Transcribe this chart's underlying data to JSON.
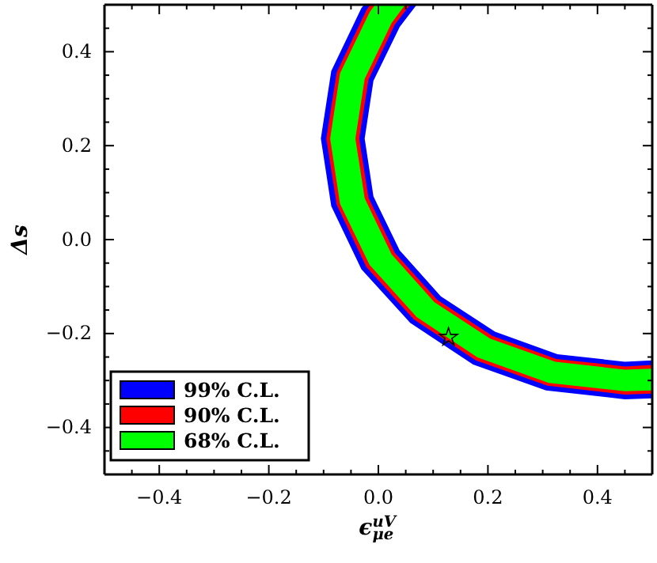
{
  "chart_data": {
    "type": "area",
    "xlabel": "ϵ$^{uV}$$_{μe}$",
    "ylabel": "Δs",
    "xlim": [
      -0.5,
      0.5
    ],
    "ylim": [
      -0.5,
      0.5
    ],
    "xticks": [
      {
        "value": -0.5,
        "label": null
      },
      {
        "value": -0.45,
        "label": null
      },
      {
        "value": -0.4,
        "label": "−0.4"
      },
      {
        "value": -0.35,
        "label": null
      },
      {
        "value": -0.3,
        "label": null
      },
      {
        "value": -0.25,
        "label": null
      },
      {
        "value": -0.2,
        "label": "−0.2"
      },
      {
        "value": -0.15,
        "label": null
      },
      {
        "value": -0.1,
        "label": null
      },
      {
        "value": -0.05,
        "label": null
      },
      {
        "value": 0,
        "label": "0.0"
      },
      {
        "value": 0.05,
        "label": null
      },
      {
        "value": 0.1,
        "label": null
      },
      {
        "value": 0.15,
        "label": null
      },
      {
        "value": 0.2,
        "label": "0.2"
      },
      {
        "value": 0.25,
        "label": null
      },
      {
        "value": 0.3,
        "label": null
      },
      {
        "value": 0.35,
        "label": null
      },
      {
        "value": 0.4,
        "label": "0.4"
      },
      {
        "value": 0.45,
        "label": null
      },
      {
        "value": 0.5,
        "label": null
      }
    ],
    "yticks": [
      {
        "value": -0.5,
        "label": null
      },
      {
        "value": -0.45,
        "label": null
      },
      {
        "value": -0.4,
        "label": "−0.4"
      },
      {
        "value": -0.35,
        "label": null
      },
      {
        "value": -0.3,
        "label": null
      },
      {
        "value": -0.25,
        "label": null
      },
      {
        "value": -0.2,
        "label": "−0.2"
      },
      {
        "value": -0.15,
        "label": null
      },
      {
        "value": -0.1,
        "label": null
      },
      {
        "value": -0.05,
        "label": null
      },
      {
        "value": 0,
        "label": "0.0"
      },
      {
        "value": 0.05,
        "label": null
      },
      {
        "value": 0.1,
        "label": null
      },
      {
        "value": 0.15,
        "label": null
      },
      {
        "value": 0.2,
        "label": "0.2"
      },
      {
        "value": 0.25,
        "label": null
      },
      {
        "value": 0.3,
        "label": null
      },
      {
        "value": 0.35,
        "label": null
      },
      {
        "value": 0.4,
        "label": "0.4"
      },
      {
        "value": 0.45,
        "label": null
      },
      {
        "value": 0.5,
        "label": null
      }
    ],
    "grid": false,
    "legend": "bottom left",
    "series": [
      {
        "name": "99% C.L.",
        "color": "#0000ff",
        "x": [
          -0.026,
          -0.031,
          -0.086,
          -0.105,
          -0.086,
          -0.031,
          0.058,
          0.173,
          0.306,
          0.45,
          0.5,
          0.5,
          0.45,
          0.327,
          0.213,
          0.114,
          0.039,
          -0.009,
          -0.025,
          -0.009,
          0.039,
          0.07
        ],
        "values": [
          0.5,
          0.493,
          0.359,
          0.215,
          0.071,
          -0.063,
          -0.177,
          -0.266,
          -0.321,
          -0.34,
          -0.338,
          -0.257,
          -0.26,
          -0.244,
          -0.196,
          -0.121,
          -0.023,
          0.092,
          0.215,
          0.338,
          0.453,
          0.5
        ]
      },
      {
        "name": "90% C.L.",
        "color": "#ff0000",
        "x": [
          -0.015,
          -0.022,
          -0.076,
          -0.095,
          -0.076,
          -0.022,
          0.065,
          0.178,
          0.309,
          0.45,
          0.5,
          0.5,
          0.45,
          0.325,
          0.208,
          0.107,
          0.03,
          -0.018,
          -0.035,
          -0.018,
          0.03,
          0.058
        ],
        "values": [
          0.5,
          0.488,
          0.356,
          0.215,
          0.074,
          -0.058,
          -0.17,
          -0.257,
          -0.311,
          -0.33,
          -0.328,
          -0.267,
          -0.27,
          -0.254,
          -0.205,
          -0.128,
          -0.028,
          0.089,
          0.215,
          0.341,
          0.458,
          0.5
        ]
      },
      {
        "name": "68% C.L.",
        "color": "#00ff00",
        "x": [
          -0.006,
          -0.016,
          -0.07,
          -0.088,
          -0.07,
          -0.016,
          0.07,
          0.181,
          0.311,
          0.45,
          0.5,
          0.5,
          0.45,
          0.323,
          0.204,
          0.102,
          0.024,
          -0.025,
          -0.042,
          -0.025,
          0.024,
          0.049
        ],
        "values": [
          0.5,
          0.484,
          0.354,
          0.215,
          0.076,
          -0.054,
          -0.165,
          -0.251,
          -0.305,
          -0.323,
          -0.321,
          -0.275,
          -0.277,
          -0.26,
          -0.211,
          -0.133,
          -0.031,
          0.088,
          0.215,
          0.342,
          0.461,
          0.5
        ]
      },
      {
        "type": "scatter",
        "marker": "star",
        "color": "#000000",
        "x": [
          0.128
        ],
        "values": [
          -0.208
        ]
      }
    ]
  }
}
